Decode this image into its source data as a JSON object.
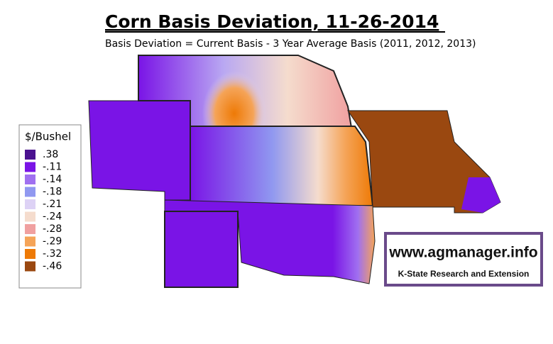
{
  "header": {
    "title": "Corn Basis Deviation, 11-26-2014",
    "subtitle": "Basis Deviation = Current Basis - 3 Year Average Basis (2011, 2012, 2013)"
  },
  "legend": {
    "title": "$/Bushel",
    "items": [
      {
        "label": ".38",
        "color": "#4b1290"
      },
      {
        "label": "-.11",
        "color": "#7a14e6"
      },
      {
        "label": "-.14",
        "color": "#a070f0"
      },
      {
        "label": "-.18",
        "color": "#9098f0"
      },
      {
        "label": "-.21",
        "color": "#ddd2f5"
      },
      {
        "label": "-.24",
        "color": "#f5dccd"
      },
      {
        "label": "-.28",
        "color": "#f0a0a0"
      },
      {
        "label": "-.29",
        "color": "#f5a458"
      },
      {
        "label": "-.32",
        "color": "#ee7a06"
      },
      {
        "label": "-.46",
        "color": "#9a4810"
      }
    ]
  },
  "logo": {
    "url": "www.agmanager.info",
    "org": "K-State Research and Extension"
  }
}
